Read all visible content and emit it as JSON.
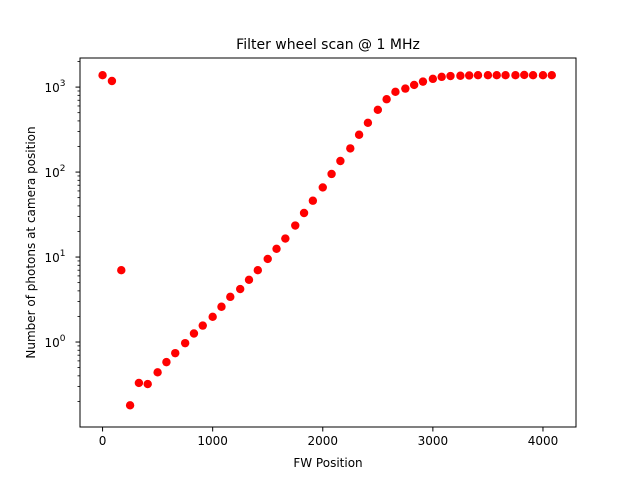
{
  "chart_data": {
    "type": "scatter",
    "title": "Filter wheel scan @ 1 MHz",
    "xlabel": "FW Position",
    "ylabel": "Number of photons at camera position",
    "xlim": [
      -205,
      4300
    ],
    "ylim": [
      0.1,
      2200
    ],
    "yscale": "log",
    "grid": false,
    "legend": "none",
    "marker_color": "#ff0000",
    "x_ticks": [
      {
        "value": 0,
        "label": "0"
      },
      {
        "value": 1000,
        "label": "1000"
      },
      {
        "value": 2000,
        "label": "2000"
      },
      {
        "value": 3000,
        "label": "3000"
      },
      {
        "value": 4000,
        "label": "4000"
      }
    ],
    "y_ticks": [
      {
        "value": 1,
        "base": "10",
        "exp": "0"
      },
      {
        "value": 10,
        "base": "10",
        "exp": "1"
      },
      {
        "value": 100,
        "base": "10",
        "exp": "2"
      },
      {
        "value": 1000,
        "base": "10",
        "exp": "3"
      }
    ],
    "series": [
      {
        "x": [
          0,
          85,
          170,
          250,
          330,
          410,
          500,
          580,
          660,
          750,
          830,
          910,
          1000,
          1080,
          1160,
          1250,
          1330,
          1410,
          1500,
          1580,
          1660,
          1750,
          1830,
          1910,
          2000,
          2080,
          2160,
          2250,
          2330,
          2410,
          2500,
          2580,
          2660,
          2750,
          2830,
          2910,
          3000,
          3080,
          3160,
          3250,
          3330,
          3410,
          3500,
          3580,
          3660,
          3750,
          3830,
          3910,
          4000,
          4080
        ],
        "y": [
          1380,
          1180,
          7,
          0.18,
          0.33,
          0.32,
          0.44,
          0.58,
          0.74,
          0.97,
          1.26,
          1.56,
          1.98,
          2.6,
          3.4,
          4.2,
          5.4,
          7.0,
          9.5,
          12.5,
          16.5,
          23.5,
          33,
          46,
          66,
          95,
          135,
          190,
          275,
          380,
          540,
          720,
          880,
          960,
          1060,
          1160,
          1250,
          1320,
          1350,
          1360,
          1370,
          1380,
          1380,
          1380,
          1380,
          1380,
          1390,
          1380,
          1380,
          1380
        ]
      }
    ]
  }
}
